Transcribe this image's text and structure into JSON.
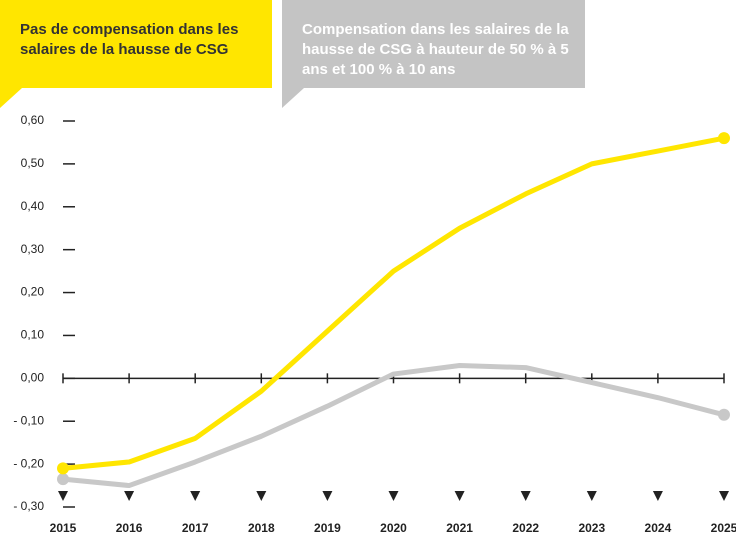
{
  "chart_data": {
    "type": "line",
    "x": [
      2015,
      2016,
      2017,
      2018,
      2019,
      2020,
      2021,
      2022,
      2023,
      2024,
      2025
    ],
    "series": [
      {
        "name": "Pas de compensation dans les salaires de la hausse de CSG",
        "color": "#ffe600",
        "values": [
          -0.21,
          -0.195,
          -0.14,
          -0.03,
          0.11,
          0.25,
          0.35,
          0.43,
          0.5,
          0.53,
          0.56
        ]
      },
      {
        "name": "Compensation dans les salaires de la hausse de CSG à hauteur de 50 % à 5 ans et 100 % à 10 ans",
        "color": "#c8c8c8",
        "values": [
          -0.235,
          -0.25,
          -0.195,
          -0.135,
          -0.065,
          0.01,
          0.03,
          0.025,
          -0.01,
          -0.045,
          -0.085
        ]
      }
    ],
    "xlim": [
      2015,
      2025
    ],
    "xticks": [
      2015,
      2016,
      2017,
      2018,
      2019,
      2020,
      2021,
      2022,
      2023,
      2024,
      2025
    ],
    "ylim": [
      -0.3,
      0.6
    ],
    "yticks": [
      {
        "value": 0.6,
        "label": "0,60"
      },
      {
        "value": 0.5,
        "label": "0,50"
      },
      {
        "value": 0.4,
        "label": "0,40"
      },
      {
        "value": 0.3,
        "label": "0,30"
      },
      {
        "value": 0.2,
        "label": "0,20"
      },
      {
        "value": 0.1,
        "label": "0,10"
      },
      {
        "value": 0,
        "label": "0,00"
      },
      {
        "value": -0.1,
        "label": "- 0,10"
      },
      {
        "value": -0.2,
        "label": "- 0,20"
      },
      {
        "value": -0.3,
        "label": "- 0,30"
      }
    ]
  }
}
